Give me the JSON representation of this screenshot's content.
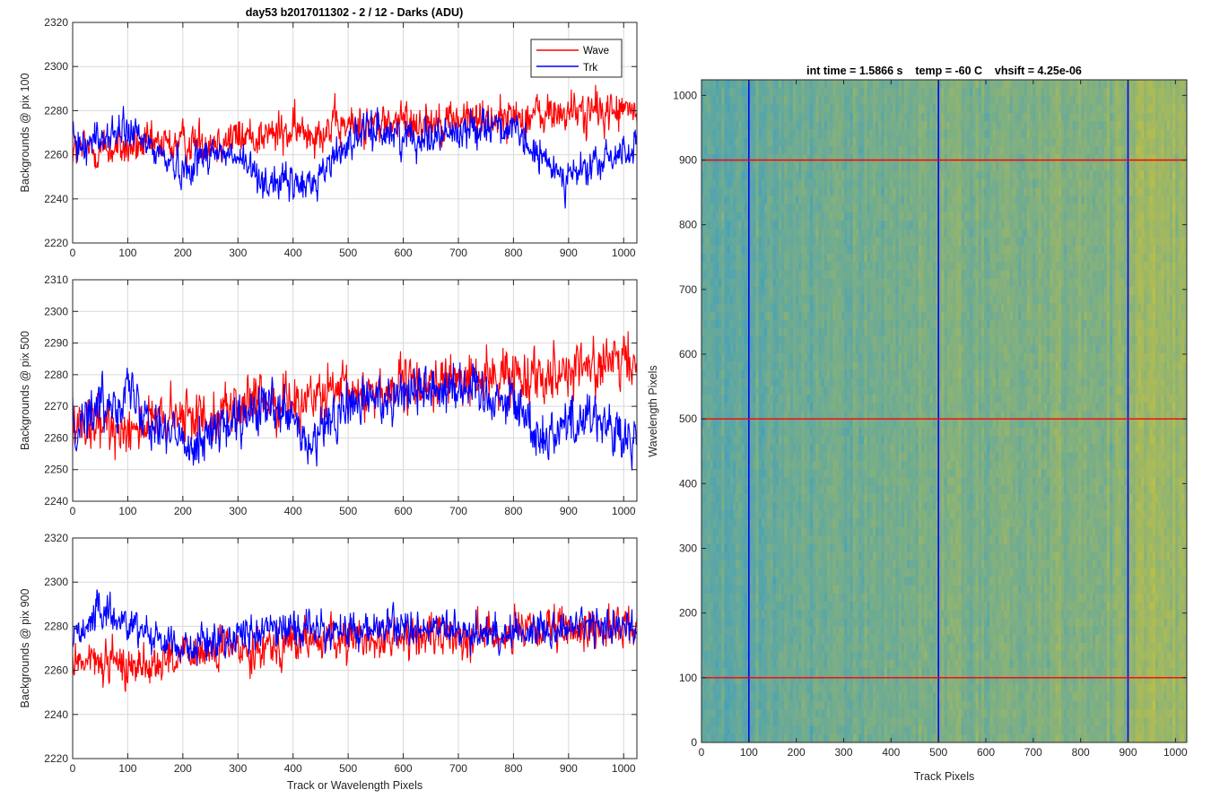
{
  "figure": {
    "title": "day53 b2017011302 - 2 / 12 - Darks (ADU)",
    "right_title": "int time = 1.5866 s    temp = -60 C    vhsift = 4.25e-06"
  },
  "colors": {
    "wave": "#ff0000",
    "trk": "#0000ff",
    "axis": "#262626",
    "grid": "#d9d9d9",
    "heatmap_low": "#2f9bd0",
    "heatmap_high": "#c8c23c"
  },
  "legend": {
    "placement": "top-right",
    "entries": [
      "Wave",
      "Trk"
    ]
  },
  "chart_data": [
    {
      "type": "line",
      "ylabel": "Backgrounds @ pix 100",
      "xlabel": "",
      "xlim": [
        0,
        1024
      ],
      "ylim": [
        2220,
        2320
      ],
      "xticks": [
        "0",
        "100",
        "200",
        "300",
        "400",
        "500",
        "600",
        "700",
        "800",
        "900",
        "1000"
      ],
      "yticks": [
        "2220",
        "2240",
        "2260",
        "2280",
        "2300",
        "2320"
      ],
      "grid": true,
      "series": [
        {
          "name": "Wave",
          "color": "#ff0000",
          "anchors": [
            [
              0,
              2262
            ],
            [
              100,
              2263
            ],
            [
              200,
              2265
            ],
            [
              300,
              2268
            ],
            [
              400,
              2270
            ],
            [
              500,
              2273
            ],
            [
              600,
              2275
            ],
            [
              700,
              2276
            ],
            [
              800,
              2277
            ],
            [
              900,
              2279
            ],
            [
              1024,
              2280
            ]
          ],
          "noise": 7
        },
        {
          "name": "Trk",
          "color": "#0000ff",
          "anchors": [
            [
              0,
              2264
            ],
            [
              100,
              2271
            ],
            [
              200,
              2253
            ],
            [
              250,
              2262
            ],
            [
              300,
              2258
            ],
            [
              350,
              2248
            ],
            [
              430,
              2246
            ],
            [
              500,
              2266
            ],
            [
              550,
              2272
            ],
            [
              600,
              2268
            ],
            [
              700,
              2270
            ],
            [
              760,
              2275
            ],
            [
              800,
              2270
            ],
            [
              850,
              2258
            ],
            [
              900,
              2250
            ],
            [
              950,
              2255
            ],
            [
              1000,
              2262
            ],
            [
              1024,
              2263
            ]
          ],
          "noise": 6
        }
      ]
    },
    {
      "type": "line",
      "ylabel": "Backgrounds @ pix 500",
      "xlabel": "",
      "xlim": [
        0,
        1024
      ],
      "ylim": [
        2240,
        2310
      ],
      "xticks": [
        "0",
        "100",
        "200",
        "300",
        "400",
        "500",
        "600",
        "700",
        "800",
        "900",
        "1000"
      ],
      "yticks": [
        "2240",
        "2250",
        "2260",
        "2270",
        "2280",
        "2290",
        "2300",
        "2310"
      ],
      "grid": true,
      "series": [
        {
          "name": "Wave",
          "color": "#ff0000",
          "anchors": [
            [
              0,
              2262
            ],
            [
              100,
              2264
            ],
            [
              200,
              2266
            ],
            [
              300,
              2270
            ],
            [
              400,
              2272
            ],
            [
              500,
              2274
            ],
            [
              600,
              2276
            ],
            [
              700,
              2278
            ],
            [
              800,
              2280
            ],
            [
              900,
              2282
            ],
            [
              1024,
              2284
            ]
          ],
          "noise": 6
        },
        {
          "name": "Trk",
          "color": "#0000ff",
          "anchors": [
            [
              0,
              2265
            ],
            [
              50,
              2270
            ],
            [
              100,
              2275
            ],
            [
              150,
              2266
            ],
            [
              200,
              2258
            ],
            [
              250,
              2262
            ],
            [
              300,
              2264
            ],
            [
              350,
              2270
            ],
            [
              400,
              2265
            ],
            [
              430,
              2256
            ],
            [
              470,
              2266
            ],
            [
              500,
              2270
            ],
            [
              600,
              2275
            ],
            [
              700,
              2277
            ],
            [
              750,
              2274
            ],
            [
              800,
              2272
            ],
            [
              850,
              2260
            ],
            [
              900,
              2265
            ],
            [
              950,
              2268
            ],
            [
              1000,
              2258
            ],
            [
              1024,
              2258
            ]
          ],
          "noise": 6
        }
      ]
    },
    {
      "type": "line",
      "ylabel": "Backgrounds @ pix 900",
      "xlabel": "Track or Wavelength Pixels",
      "xlim": [
        0,
        1024
      ],
      "ylim": [
        2220,
        2320
      ],
      "xticks": [
        "0",
        "100",
        "200",
        "300",
        "400",
        "500",
        "600",
        "700",
        "800",
        "900",
        "1000"
      ],
      "yticks": [
        "2220",
        "2240",
        "2260",
        "2280",
        "2300",
        "2320"
      ],
      "grid": true,
      "series": [
        {
          "name": "Wave",
          "color": "#ff0000",
          "anchors": [
            [
              0,
              2265
            ],
            [
              100,
              2262
            ],
            [
              200,
              2266
            ],
            [
              300,
              2270
            ],
            [
              400,
              2273
            ],
            [
              500,
              2274
            ],
            [
              600,
              2275
            ],
            [
              700,
              2276
            ],
            [
              800,
              2277
            ],
            [
              900,
              2278
            ],
            [
              1024,
              2280
            ]
          ],
          "noise": 7
        },
        {
          "name": "Trk",
          "color": "#0000ff",
          "anchors": [
            [
              0,
              2276
            ],
            [
              50,
              2286
            ],
            [
              100,
              2282
            ],
            [
              200,
              2270
            ],
            [
              300,
              2276
            ],
            [
              400,
              2280
            ],
            [
              500,
              2277
            ],
            [
              600,
              2280
            ],
            [
              700,
              2277
            ],
            [
              800,
              2277
            ],
            [
              900,
              2280
            ],
            [
              1024,
              2280
            ]
          ],
          "noise": 6
        }
      ]
    },
    {
      "type": "heatmap",
      "title": "int time = 1.5866 s    temp = -60 C    vhsift = 4.25e-06",
      "xlabel": "Track Pixels",
      "ylabel": "Wavelength Pixels",
      "xlim": [
        0,
        1024
      ],
      "ylim": [
        0,
        1024
      ],
      "xticks": [
        "0",
        "100",
        "200",
        "300",
        "400",
        "500",
        "600",
        "700",
        "800",
        "900",
        "1000"
      ],
      "yticks": [
        "0",
        "100",
        "200",
        "300",
        "400",
        "500",
        "600",
        "700",
        "800",
        "900",
        "1000"
      ],
      "vertical_lines": [
        100,
        500,
        900
      ],
      "horizontal_lines": [
        100,
        500,
        900
      ],
      "vertical_line_color": "#0000ff",
      "horizontal_line_color": "#ff0000",
      "column_profile": [
        [
          0,
          0.35
        ],
        [
          100,
          0.3
        ],
        [
          200,
          0.4
        ],
        [
          300,
          0.42
        ],
        [
          400,
          0.48
        ],
        [
          500,
          0.52
        ],
        [
          600,
          0.5
        ],
        [
          700,
          0.52
        ],
        [
          800,
          0.55
        ],
        [
          900,
          0.58
        ],
        [
          940,
          0.72
        ],
        [
          1024,
          0.75
        ]
      ]
    }
  ]
}
